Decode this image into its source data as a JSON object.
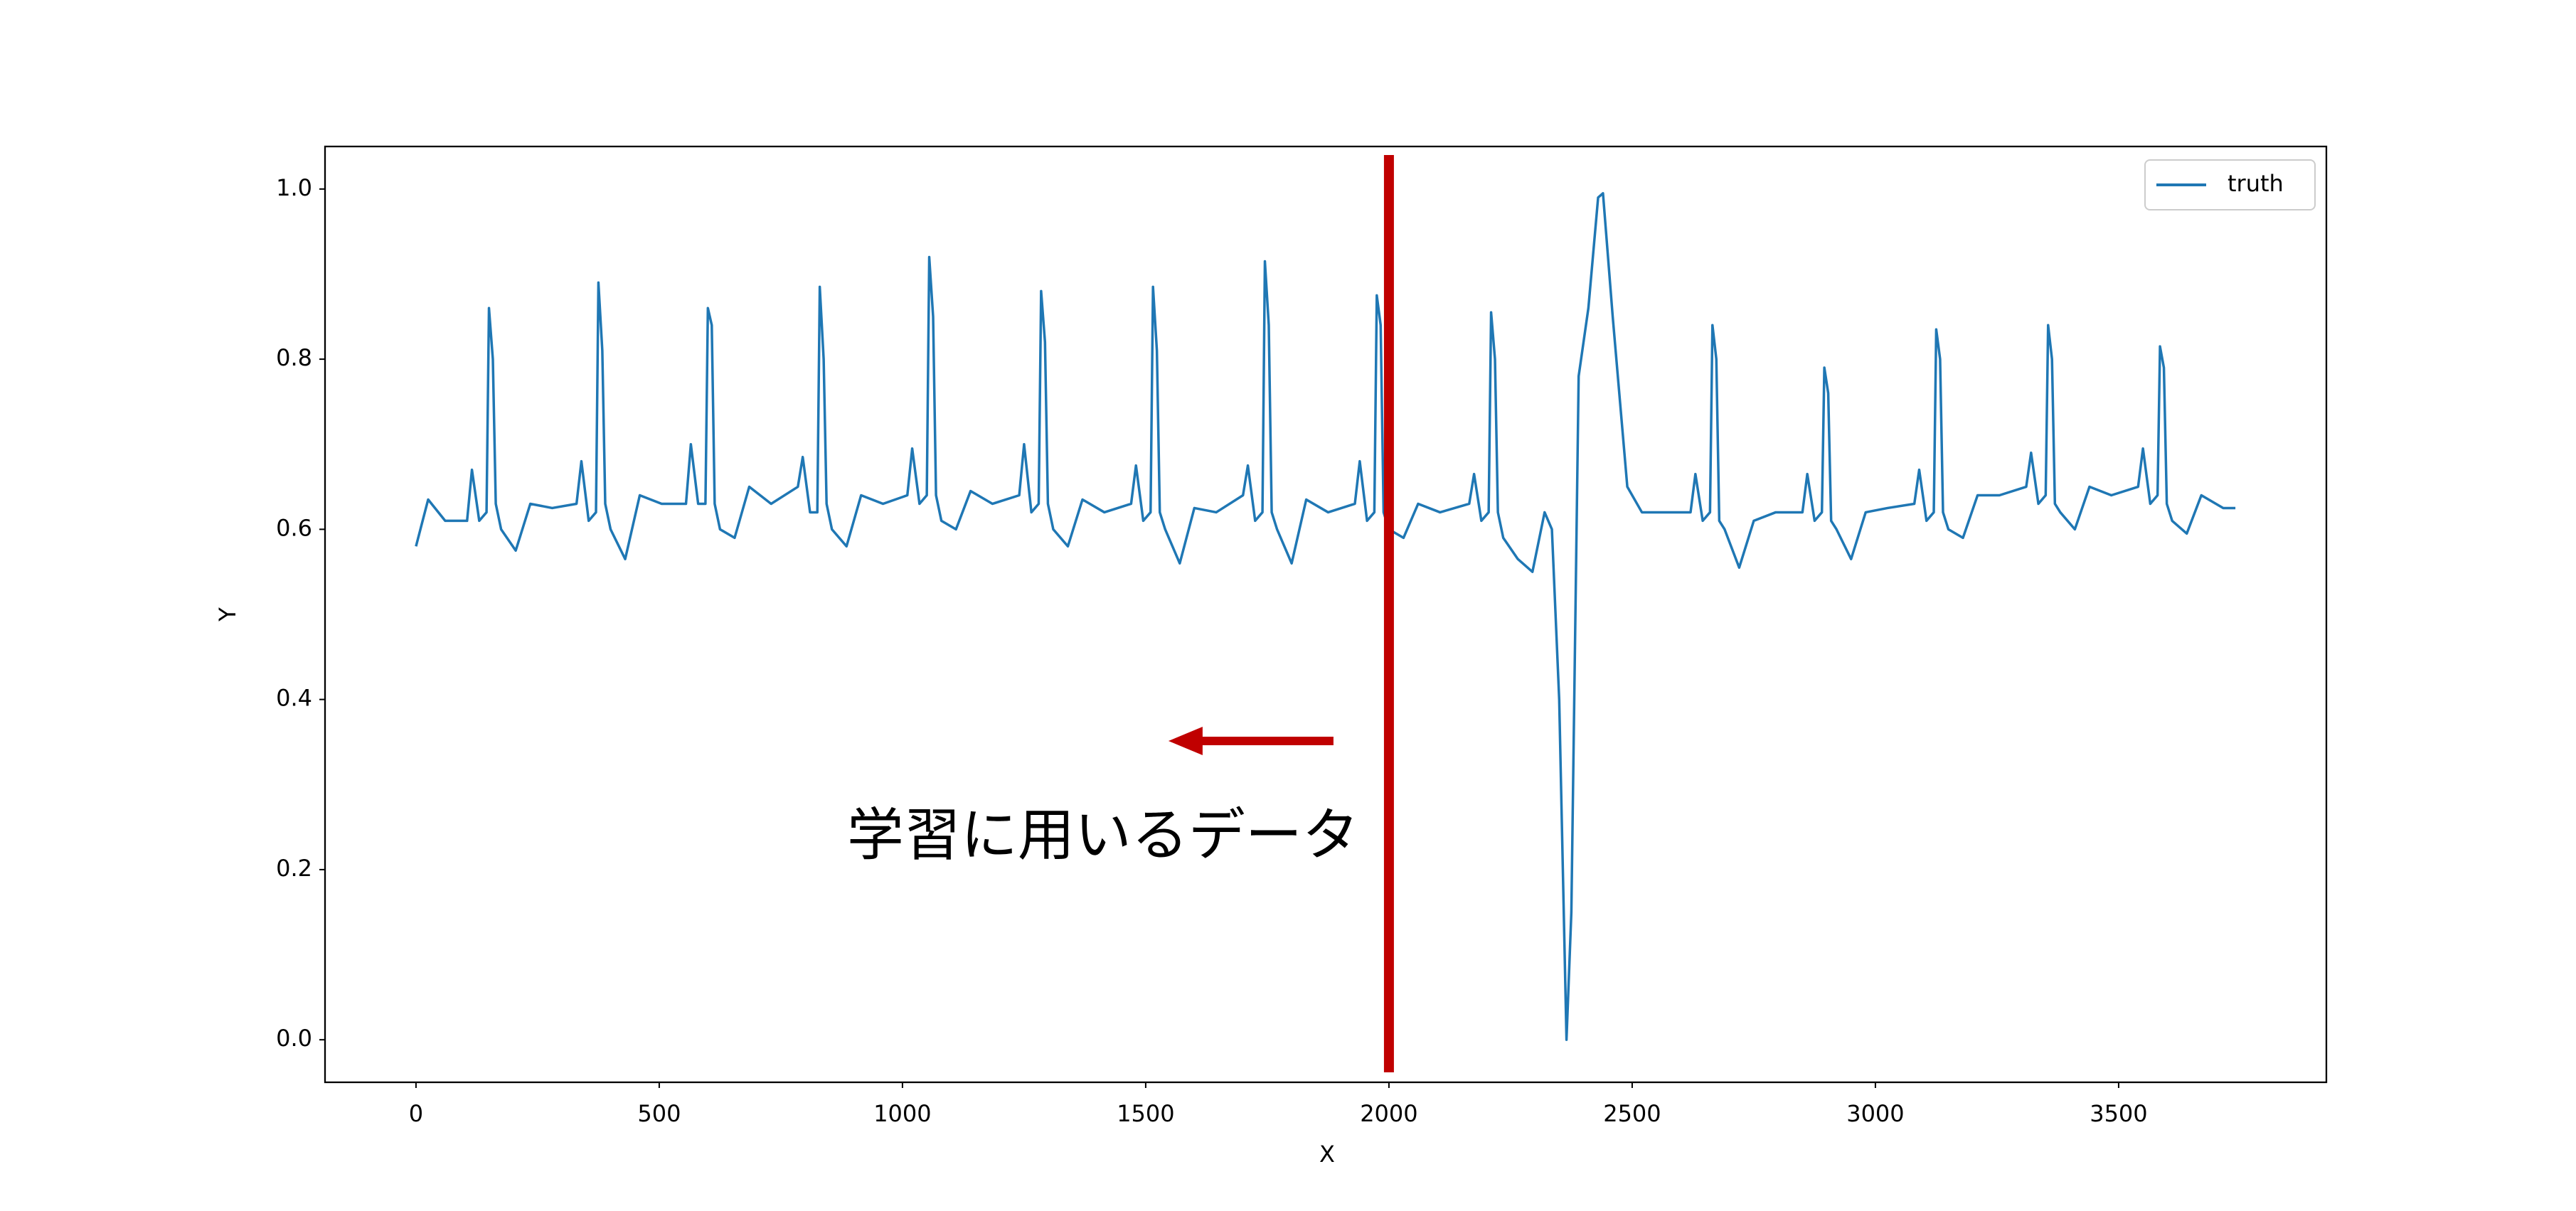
{
  "chart_data": {
    "type": "line",
    "x_label": "X",
    "y_label": "Y",
    "x": [
      0,
      25,
      60,
      105,
      115,
      130,
      145,
      150,
      158,
      164,
      175,
      205,
      235,
      280,
      330,
      340,
      355,
      370,
      375,
      383,
      389,
      400,
      430,
      460,
      505,
      555,
      565,
      580,
      595,
      600,
      608,
      614,
      625,
      655,
      685,
      730,
      785,
      795,
      810,
      825,
      830,
      838,
      844,
      855,
      885,
      915,
      960,
      1010,
      1020,
      1035,
      1050,
      1055,
      1063,
      1069,
      1080,
      1110,
      1140,
      1185,
      1240,
      1250,
      1265,
      1280,
      1285,
      1293,
      1299,
      1310,
      1340,
      1370,
      1415,
      1470,
      1480,
      1495,
      1510,
      1515,
      1523,
      1529,
      1540,
      1570,
      1600,
      1645,
      1700,
      1710,
      1725,
      1740,
      1745,
      1753,
      1759,
      1770,
      1800,
      1830,
      1875,
      1930,
      1940,
      1955,
      1970,
      1975,
      1983,
      1989,
      2000,
      2030,
      2060,
      2105,
      2165,
      2175,
      2190,
      2205,
      2210,
      2218,
      2224,
      2235,
      2265,
      2295,
      2320,
      2335,
      2350,
      2365,
      2375,
      2390,
      2410,
      2430,
      2440,
      2460,
      2490,
      2520,
      2600,
      2620,
      2630,
      2645,
      2660,
      2665,
      2673,
      2679,
      2690,
      2720,
      2750,
      2795,
      2850,
      2860,
      2875,
      2890,
      2895,
      2903,
      2909,
      2920,
      2950,
      2980,
      3025,
      3080,
      3090,
      3105,
      3120,
      3125,
      3133,
      3139,
      3150,
      3180,
      3210,
      3255,
      3310,
      3320,
      3335,
      3350,
      3355,
      3363,
      3369,
      3380,
      3410,
      3440,
      3485,
      3540,
      3550,
      3565,
      3580,
      3585,
      3593,
      3599,
      3610,
      3640,
      3670,
      3715,
      3740
    ],
    "series": [
      {
        "name": "truth",
        "color": "#1f77b4",
        "values": [
          0.58,
          0.635,
          0.61,
          0.61,
          0.67,
          0.61,
          0.62,
          0.86,
          0.8,
          0.63,
          0.6,
          0.575,
          0.63,
          0.625,
          0.63,
          0.68,
          0.61,
          0.62,
          0.89,
          0.81,
          0.63,
          0.6,
          0.565,
          0.64,
          0.63,
          0.63,
          0.7,
          0.63,
          0.63,
          0.86,
          0.84,
          0.63,
          0.6,
          0.59,
          0.65,
          0.63,
          0.65,
          0.685,
          0.62,
          0.62,
          0.885,
          0.8,
          0.63,
          0.6,
          0.58,
          0.64,
          0.63,
          0.64,
          0.695,
          0.63,
          0.64,
          0.92,
          0.85,
          0.64,
          0.61,
          0.6,
          0.645,
          0.63,
          0.64,
          0.7,
          0.62,
          0.63,
          0.88,
          0.82,
          0.63,
          0.6,
          0.58,
          0.635,
          0.62,
          0.63,
          0.675,
          0.61,
          0.62,
          0.885,
          0.81,
          0.62,
          0.6,
          0.56,
          0.625,
          0.62,
          0.64,
          0.675,
          0.61,
          0.62,
          0.915,
          0.84,
          0.62,
          0.6,
          0.56,
          0.635,
          0.62,
          0.63,
          0.68,
          0.61,
          0.62,
          0.875,
          0.84,
          0.62,
          0.6,
          0.59,
          0.63,
          0.62,
          0.63,
          0.665,
          0.61,
          0.62,
          0.855,
          0.8,
          0.62,
          0.59,
          0.565,
          0.55,
          0.62,
          0.6,
          0.4,
          0.0,
          0.15,
          0.78,
          0.86,
          0.99,
          0.995,
          0.85,
          0.65,
          0.62,
          0.62,
          0.62,
          0.665,
          0.61,
          0.62,
          0.84,
          0.8,
          0.61,
          0.6,
          0.555,
          0.61,
          0.62,
          0.62,
          0.665,
          0.61,
          0.62,
          0.79,
          0.76,
          0.61,
          0.6,
          0.565,
          0.62,
          0.625,
          0.63,
          0.67,
          0.61,
          0.62,
          0.835,
          0.8,
          0.62,
          0.6,
          0.59,
          0.64,
          0.64,
          0.65,
          0.69,
          0.63,
          0.64,
          0.84,
          0.8,
          0.63,
          0.62,
          0.6,
          0.65,
          0.64,
          0.65,
          0.695,
          0.63,
          0.64,
          0.815,
          0.79,
          0.63,
          0.61,
          0.595,
          0.64,
          0.625,
          0.625
        ]
      }
    ],
    "xlim": [
      -187,
      3927
    ],
    "ylim": [
      -0.05,
      1.05
    ],
    "xticks": [
      0,
      500,
      1000,
      1500,
      2000,
      2500,
      3000,
      3500
    ],
    "yticks": [
      {
        "value": 0,
        "label": "0.0"
      },
      0.2,
      0.4,
      0.6,
      0.8,
      {
        "value": 1,
        "label": "1.0"
      }
    ],
    "legend": "upper right",
    "vline": {
      "x": 2000,
      "color": "#c00000"
    },
    "annotation": "学習に用いるデータ"
  }
}
